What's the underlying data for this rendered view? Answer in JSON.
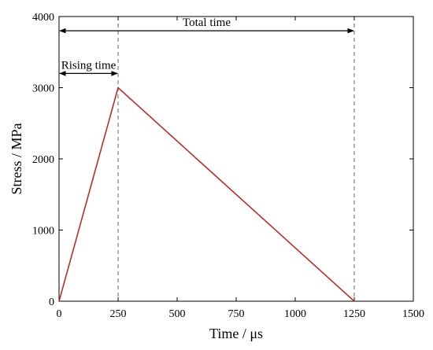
{
  "chart_data": {
    "type": "line",
    "xlabel": "Time / μs",
    "ylabel": "Stress / MPa",
    "xlim": [
      0,
      1500
    ],
    "ylim": [
      0,
      4000
    ],
    "x_ticks": [
      0,
      250,
      500,
      750,
      1000,
      1250,
      1500
    ],
    "y_ticks": [
      0,
      1000,
      2000,
      3000,
      4000
    ],
    "series": [
      {
        "x": [
          0,
          250,
          1250
        ],
        "y": [
          0,
          3000,
          0
        ],
        "color": "#b5302a"
      }
    ],
    "reference_lines": [
      {
        "x": 250,
        "style": "dashed"
      },
      {
        "x": 1250,
        "style": "dashed"
      }
    ],
    "annotations": [
      {
        "text": "Total time",
        "from_x": 0,
        "to_x": 1250,
        "y": 3800
      },
      {
        "text": "Rising time",
        "from_x": 0,
        "to_x": 250,
        "y": 3200
      }
    ],
    "grid": false
  }
}
